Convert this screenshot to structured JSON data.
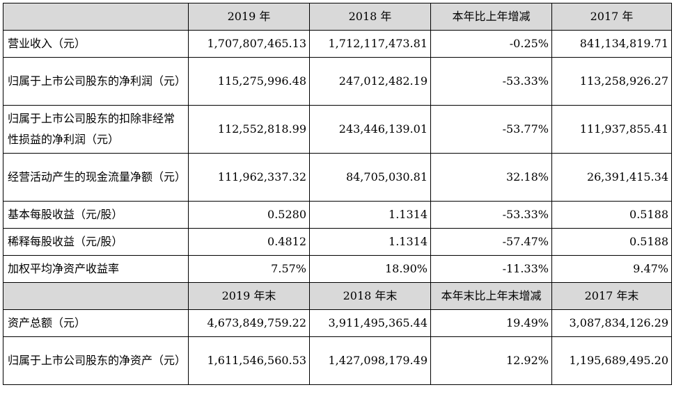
{
  "header1": [
    "",
    "2019 年",
    "2018 年",
    "本年比上年增减",
    "2017 年"
  ],
  "rows1": [
    {
      "label": "营业收入（元）",
      "v2019": "1,707,807,465.13",
      "v2018": "1,712,117,473.81",
      "change": "-0.25%",
      "v2017": "841,134,819.71"
    },
    {
      "label": "归属于上市公司股东的净利润（元）",
      "v2019": "115,275,996.48",
      "v2018": "247,012,482.19",
      "change": "-53.33%",
      "v2017": "113,258,926.27"
    },
    {
      "label": "归属于上市公司股东的扣除非经常性损益的净利润（元）",
      "v2019": "112,552,818.99",
      "v2018": "243,446,139.01",
      "change": "-53.77%",
      "v2017": "111,937,855.41"
    },
    {
      "label": "经营活动产生的现金流量净额（元）",
      "v2019": "111,962,337.32",
      "v2018": "84,705,030.81",
      "change": "32.18%",
      "v2017": "26,391,415.34"
    },
    {
      "label": "基本每股收益（元/股）",
      "v2019": "0.5280",
      "v2018": "1.1314",
      "change": "-53.33%",
      "v2017": "0.5188"
    },
    {
      "label": "稀释每股收益（元/股）",
      "v2019": "0.4812",
      "v2018": "1.1314",
      "change": "-57.47%",
      "v2017": "0.5188"
    },
    {
      "label": "加权平均净资产收益率",
      "v2019": "7.57%",
      "v2018": "18.90%",
      "change": "-11.33%",
      "v2017": "9.47%"
    }
  ],
  "header2": [
    "",
    "2019 年末",
    "2018 年末",
    "本年末比上年末增减",
    "2017 年末"
  ],
  "rows2": [
    {
      "label": "资产总额（元）",
      "v2019": "4,673,849,759.22",
      "v2018": "3,911,495,365.44",
      "change": "19.49%",
      "v2017": "3,087,834,126.29"
    },
    {
      "label": "归属于上市公司股东的净资产（元）",
      "v2019": "1,611,546,560.53",
      "v2018": "1,427,098,179.49",
      "change": "12.92%",
      "v2017": "1,195,689,495.20"
    }
  ]
}
